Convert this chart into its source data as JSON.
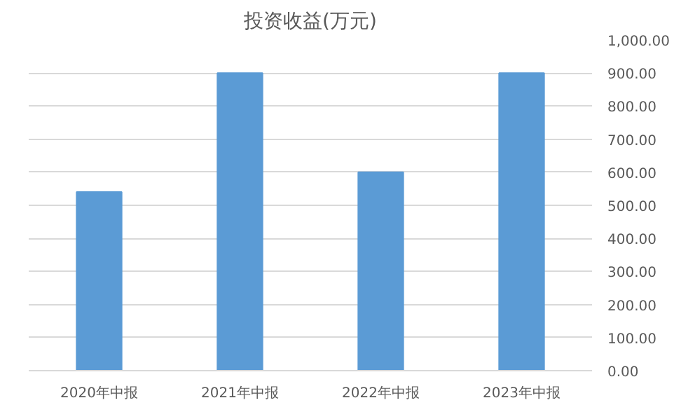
{
  "chart_data": {
    "type": "bar",
    "title": "投资收益(万元)",
    "categories": [
      "2020年中报",
      "2021年中报",
      "2022年中报",
      "2023年中报"
    ],
    "values": [
      540,
      900,
      600,
      900
    ],
    "color": "#5b9bd5",
    "ylim": [
      0,
      1000
    ],
    "yticks": [
      {
        "value": 0,
        "label": "0.00"
      },
      {
        "value": 100,
        "label": "100.00"
      },
      {
        "value": 200,
        "label": "200.00"
      },
      {
        "value": 300,
        "label": "300.00"
      },
      {
        "value": 400,
        "label": "400.00"
      },
      {
        "value": 500,
        "label": "500.00"
      },
      {
        "value": 600,
        "label": "600.00"
      },
      {
        "value": 700,
        "label": "700.00"
      },
      {
        "value": 800,
        "label": "800.00"
      },
      {
        "value": 900,
        "label": "900.00"
      },
      {
        "value": 1000,
        "label": "1,000.00"
      }
    ],
    "grid": "y"
  }
}
